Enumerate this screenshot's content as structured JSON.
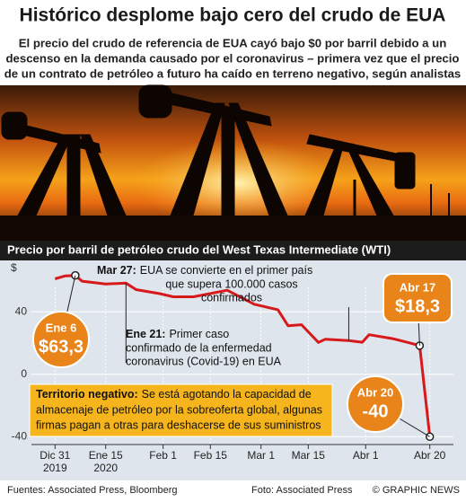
{
  "chart_data": {
    "type": "line",
    "title": "Histórico desplome bajo cero del crudo de EUA",
    "subtitle": [
      "El precio del crudo de referencia de EUA cayó bajo $0 por barril debido a un",
      "descenso en la demanda causado por el coronavirus – primera vez que el precio",
      "de un contrato de petróleo a futuro ha caído en terreno negativo, según analistas"
    ],
    "chart_title": "Precio por barril de petróleo crudo del West Texas Intermediate (WTI)",
    "y_unit": "$",
    "x": [
      "2019-12-31",
      "2020-01-03",
      "2020-01-06",
      "2020-01-08",
      "2020-01-15",
      "2020-01-21",
      "2020-01-24",
      "2020-01-31",
      "2020-02-04",
      "2020-02-10",
      "2020-02-20",
      "2020-02-28",
      "2020-03-06",
      "2020-03-09",
      "2020-03-13",
      "2020-03-18",
      "2020-03-20",
      "2020-03-27",
      "2020-03-31",
      "2020-04-02",
      "2020-04-09",
      "2020-04-14",
      "2020-04-17",
      "2020-04-20"
    ],
    "series": [
      {
        "name": "WTI",
        "color": "#d7191c",
        "values": [
          61.1,
          63.0,
          63.3,
          59.6,
          57.8,
          58.3,
          54.2,
          51.6,
          49.6,
          49.6,
          53.8,
          44.8,
          41.3,
          31.1,
          31.7,
          20.4,
          22.4,
          21.5,
          20.5,
          25.3,
          22.8,
          20.1,
          18.3,
          -40
        ],
        "value_labels": [
          null,
          null,
          "$63,3",
          null,
          null,
          null,
          null,
          null,
          null,
          null,
          null,
          null,
          null,
          null,
          null,
          null,
          null,
          null,
          null,
          null,
          null,
          null,
          "$18,3",
          "-40"
        ],
        "point_labels": [
          null,
          null,
          "Ene 6",
          null,
          null,
          null,
          null,
          null,
          null,
          null,
          null,
          null,
          null,
          null,
          null,
          null,
          null,
          null,
          null,
          null,
          null,
          null,
          "Abr 17",
          "Abr 20"
        ]
      }
    ],
    "xlim": [
      "2019-12-24",
      "2020-04-27"
    ],
    "xticks": [
      {
        "value": "2019-12-31",
        "label": [
          "Dic 31",
          "2019"
        ]
      },
      {
        "value": "2020-01-15",
        "label": [
          "Ene 15",
          "2020"
        ]
      },
      {
        "value": "2020-02-01",
        "label": [
          "Feb 1"
        ]
      },
      {
        "value": "2020-02-15",
        "label": [
          "Feb 15"
        ]
      },
      {
        "value": "2020-03-01",
        "label": [
          "Mar 1"
        ]
      },
      {
        "value": "2020-03-15",
        "label": [
          "Mar 15"
        ]
      },
      {
        "value": "2020-04-01",
        "label": [
          "Abr 1"
        ]
      },
      {
        "value": "2020-04-20",
        "label": [
          "Abr 20"
        ]
      }
    ],
    "ylim": [
      -45,
      70
    ],
    "yticks": [
      -40,
      0,
      40
    ],
    "grid": true,
    "annotations": [
      {
        "date": "2020-03-27",
        "label": "Mar 27:",
        "text": [
          "EUA se convierte en el primer país",
          "que supera 100.000 casos",
          "confirmados"
        ]
      },
      {
        "date": "2020-01-21",
        "label": "Ene 21:",
        "text": [
          "Primer caso",
          "confirmado de la enfermedad",
          "coronavirus (Covid-19) en EUA"
        ]
      },
      {
        "label": "Territorio negativo:",
        "text": [
          "Se está agotando la capacidad de",
          "almacenaje de petróleo por la sobreoferta global, algunas",
          "firmas pagan a otras para deshacerse de sus suministros"
        ]
      }
    ],
    "footer": {
      "sources": "Fuentes: Associated Press, Bloomberg",
      "photo": "Foto: Associated Press",
      "credit": "© GRAPHIC NEWS"
    }
  }
}
